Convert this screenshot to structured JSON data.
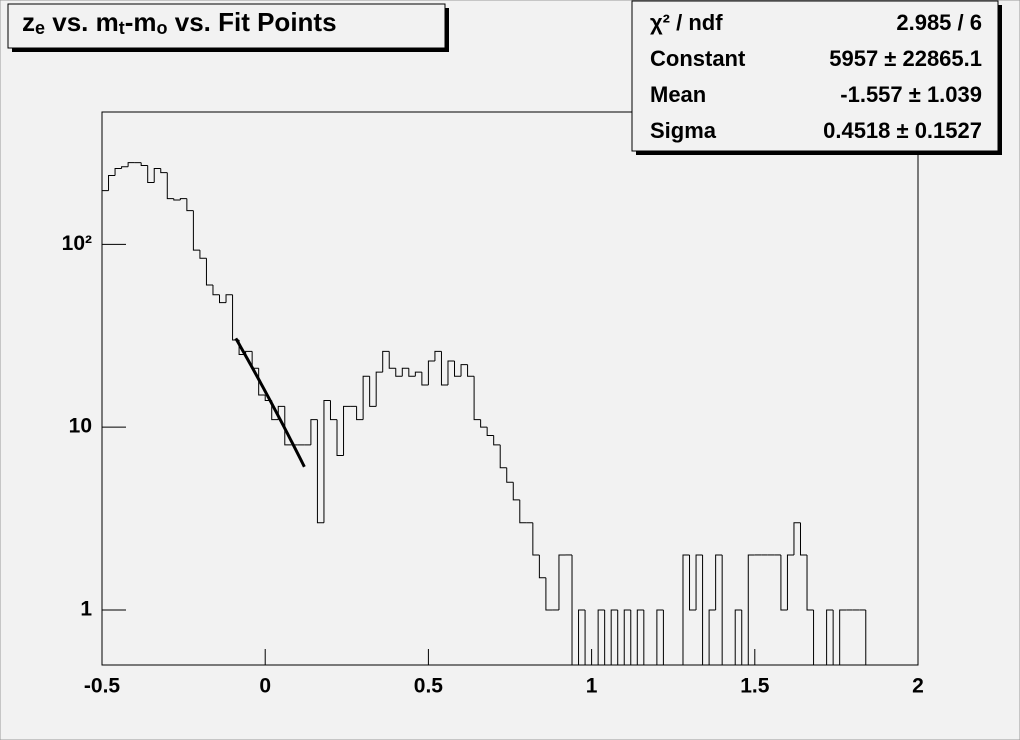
{
  "chart_data": {
    "type": "histogram",
    "title": [
      "z",
      "e",
      " vs. m",
      "t",
      "-m",
      "o",
      " vs. Fit Points"
    ],
    "bins": [
      -0.5,
      -0.48,
      -0.46,
      -0.44,
      -0.42,
      -0.4,
      -0.38,
      -0.36,
      -0.34,
      -0.32,
      -0.3,
      -0.28,
      -0.26,
      -0.24,
      -0.22,
      -0.2,
      -0.18,
      -0.16,
      -0.14,
      -0.12,
      -0.1,
      -0.08,
      -0.06,
      -0.04,
      -0.02,
      0,
      0.02,
      0.04,
      0.06,
      0.08,
      0.1,
      0.12,
      0.14,
      0.16,
      0.18,
      0.2,
      0.22,
      0.24,
      0.26,
      0.28,
      0.3,
      0.32,
      0.34,
      0.36,
      0.38,
      0.4,
      0.42,
      0.44,
      0.46,
      0.48,
      0.5,
      0.52,
      0.54,
      0.56,
      0.58,
      0.6,
      0.62,
      0.64,
      0.66,
      0.68,
      0.7,
      0.72,
      0.74,
      0.76,
      0.78,
      0.8,
      0.82,
      0.84,
      0.86,
      0.88,
      0.9,
      0.92,
      0.94,
      0.96,
      0.98,
      1,
      1.02,
      1.04,
      1.06,
      1.08,
      1.1,
      1.12,
      1.14,
      1.16,
      1.18,
      1.2,
      1.22,
      1.24,
      1.26,
      1.28,
      1.3,
      1.32,
      1.34,
      1.36,
      1.38,
      1.4,
      1.42,
      1.44,
      1.46,
      1.48,
      1.5,
      1.52,
      1.54,
      1.56,
      1.58,
      1.6,
      1.62,
      1.64,
      1.66,
      1.68,
      1.7,
      1.72,
      1.74,
      1.76,
      1.78,
      1.8,
      1.82,
      1.84,
      1.86,
      1.88,
      1.9,
      1.92,
      1.94,
      1.96,
      1.98,
      2
    ],
    "values": [
      197,
      238,
      260,
      266,
      280,
      280,
      270,
      218,
      260,
      247,
      178,
      175,
      178,
      153,
      93,
      84,
      60,
      53,
      48,
      53,
      30,
      25,
      26,
      21,
      15,
      14,
      11,
      13,
      8,
      8,
      8,
      8,
      11,
      3,
      14,
      11,
      7,
      13,
      13,
      11,
      19,
      13,
      20,
      26,
      21,
      19,
      21,
      19,
      20,
      17,
      23,
      26,
      17,
      23,
      19,
      22,
      19,
      11,
      10,
      9,
      8,
      6,
      5,
      4,
      3,
      3,
      2,
      1.5,
      1,
      1,
      2,
      2,
      0,
      1,
      0,
      0,
      1,
      0,
      1,
      0,
      1,
      0,
      1,
      0,
      0,
      1,
      0,
      0,
      0,
      2,
      1,
      2,
      0,
      1,
      2,
      0,
      0,
      1,
      0,
      2,
      2,
      2,
      2,
      2,
      1,
      2,
      3,
      2,
      1,
      0,
      0,
      1,
      0,
      1,
      1,
      1,
      1,
      0,
      0,
      0,
      0,
      0,
      0,
      0,
      0
    ],
    "color": "#000000",
    "xlim": [
      -0.5,
      2
    ],
    "xticks": [
      -0.5,
      0,
      0.5,
      1,
      1.5,
      2
    ],
    "ylim": [
      0.5,
      530
    ],
    "log_y": true,
    "yticks": [
      1,
      10,
      {
        "value": 100,
        "label": "10²"
      }
    ],
    "fit": {
      "function": "gaus",
      "range": [
        -0.09,
        0.12
      ],
      "color": "#000000"
    },
    "stats": [
      {
        "name": "χ² / ndf",
        "label": "2.985 / 6"
      },
      {
        "name": "Constant",
        "value": 5957,
        "label": "5957 ± 22865.1"
      },
      {
        "name": "Mean",
        "value": -1.557,
        "label": "-1.557 ± 1.039"
      },
      {
        "name": "Sigma",
        "value": 0.4518,
        "label": "0.4518 ± 0.1527"
      }
    ]
  }
}
